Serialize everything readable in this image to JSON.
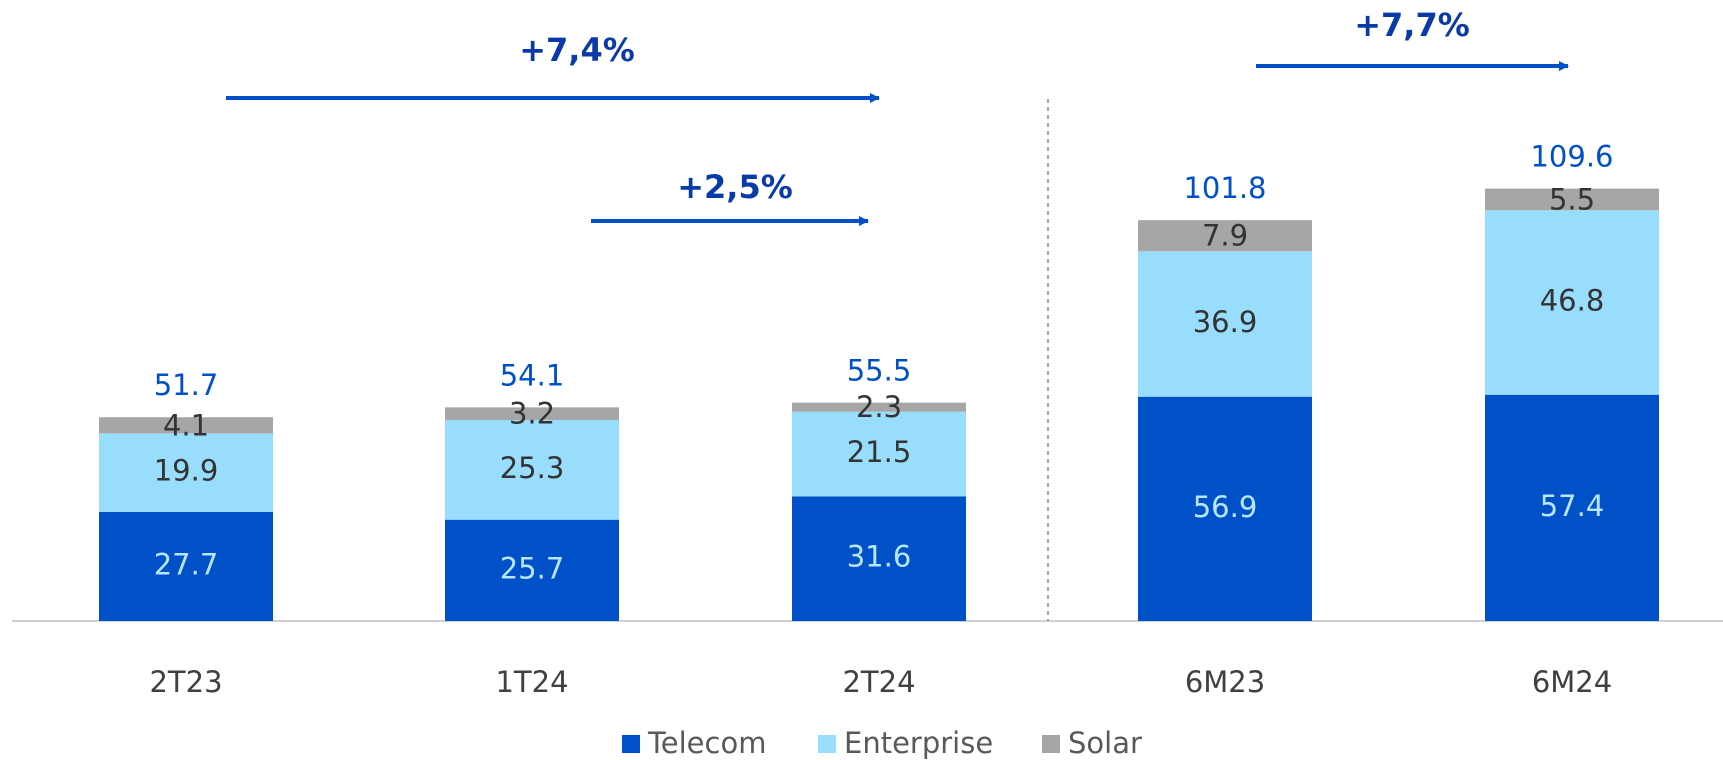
{
  "chart_data": {
    "type": "stacked_bar",
    "categories": [
      "2T23",
      "1T24",
      "2T24",
      "6M23",
      "6M24"
    ],
    "series": [
      {
        "name": "Telecom",
        "color": "#0050c8",
        "label_color": "#b8e6ff",
        "values": [
          27.7,
          25.7,
          31.6,
          56.9,
          57.4
        ]
      },
      {
        "name": "Enterprise",
        "color": "#99ddfc",
        "label_color": "#333333",
        "values": [
          19.9,
          25.3,
          21.5,
          36.9,
          46.8
        ]
      },
      {
        "name": "Solar",
        "color": "#a6a6a6",
        "label_color": "#333333",
        "values": [
          4.1,
          3.2,
          2.3,
          7.9,
          5.5
        ]
      }
    ],
    "totals": [
      51.7,
      54.1,
      55.5,
      101.8,
      109.6
    ],
    "annotations": [
      "+7,4%",
      "+2,5%",
      "+7,7%"
    ]
  }
}
